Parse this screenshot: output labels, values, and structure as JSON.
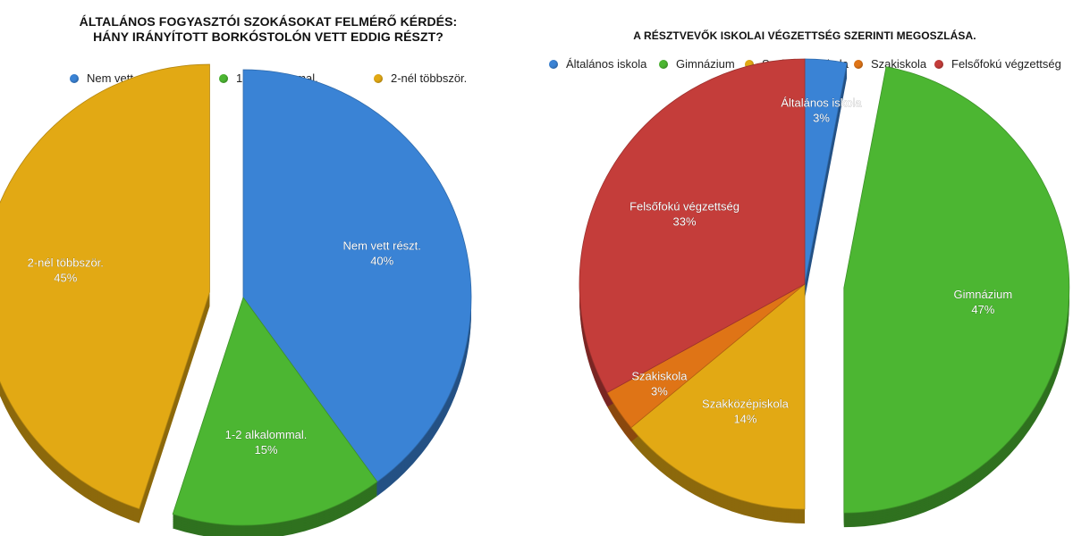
{
  "chart_data": [
    {
      "type": "pie",
      "title_line1": "ÁLTALÁNOS FOGYASZTÓI SZOKÁSOKAT FELMÉRŐ KÉRDÉS:",
      "title_line2": "HÁNY IRÁNYÍTOTT BORKÓSTOLÓN VETT EDDIG RÉSZT?",
      "legend_placement": "top",
      "slices": [
        {
          "label": "Nem vett részt.",
          "value": 40,
          "display": "40%",
          "color": "#3a83d5",
          "exploded": false
        },
        {
          "label": "1-2 alkalommal.",
          "value": 15,
          "display": "15%",
          "color": "#4cb632",
          "exploded": false
        },
        {
          "label": "2-nél többször.",
          "value": 45,
          "display": "45%",
          "color": "#e2a914",
          "exploded": true
        }
      ]
    },
    {
      "type": "pie",
      "title_line1": "A RÉSZTVEVŐK ISKOLAI VÉGZETTSÉG SZERINTI MEGOSZLÁSA.",
      "title_line2": "",
      "legend_placement": "top",
      "slices": [
        {
          "label": "Általános iskola",
          "value": 3,
          "display": "3%",
          "color": "#3a83d5",
          "exploded": false
        },
        {
          "label": "Gimnázium",
          "value": 47,
          "display": "47%",
          "color": "#4cb632",
          "exploded": true
        },
        {
          "label": "Szakközépiskola",
          "value": 14,
          "display": "14%",
          "color": "#e2a914",
          "exploded": false
        },
        {
          "label": "Szakiskola",
          "value": 3,
          "display": "3%",
          "color": "#df7416",
          "exploded": false
        },
        {
          "label": "Felsőfokú végzettség",
          "value": 33,
          "display": "33%",
          "color": "#c43d3a",
          "exploded": false
        }
      ]
    }
  ]
}
